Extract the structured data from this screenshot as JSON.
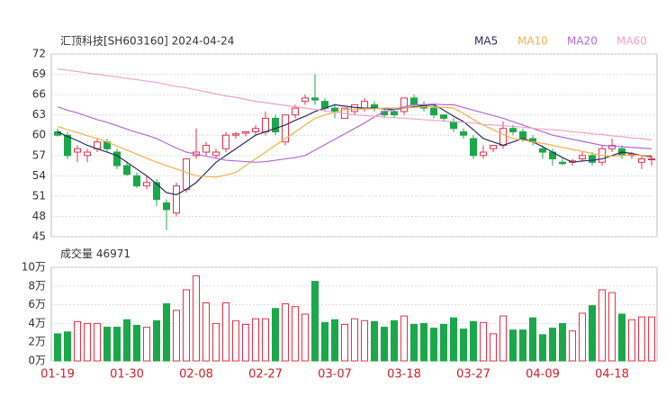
{
  "chart_data": [
    {
      "type": "candlestick",
      "title": "汇顶科技[SH603160] 2024-04-24",
      "up_color": "#e8304a",
      "down_color": "#1aa84a",
      "open": [
        60.5,
        60,
        57.5,
        57,
        58,
        59,
        57.5,
        55.5,
        54,
        52.5,
        53,
        50,
        48.5,
        52,
        57,
        57.5,
        57,
        58,
        60,
        60.3,
        60.5,
        60.5,
        62.5,
        59,
        63,
        65,
        65.5,
        65,
        64,
        62.5,
        63.5,
        64,
        64.5,
        63.5,
        63.5,
        63.5,
        65.5,
        64.5,
        64,
        63,
        62,
        60.5,
        59.5,
        57,
        58,
        58.5,
        61,
        60.5,
        59.5,
        58,
        57.5,
        56,
        56,
        56.5,
        57,
        56,
        58,
        58,
        57,
        56,
        56.5
      ],
      "high": [
        61,
        60.5,
        58.5,
        58,
        59.5,
        59.5,
        58,
        56,
        54.5,
        54,
        53.5,
        50.5,
        53,
        56.5,
        61,
        59,
        58,
        60.5,
        60.5,
        60.6,
        61.5,
        63.5,
        63,
        63,
        64.5,
        66,
        69,
        65.5,
        64.5,
        64,
        64.5,
        65.5,
        65,
        64,
        64,
        65.5,
        66,
        65,
        64.5,
        63,
        62.5,
        61,
        60,
        58.5,
        58.5,
        62,
        61.5,
        61,
        60,
        58.5,
        58,
        56.5,
        56.5,
        57.5,
        57.5,
        58.5,
        59.5,
        58.5,
        57.5,
        57,
        57
      ],
      "low": [
        59.8,
        56.5,
        56,
        56,
        57.5,
        57.5,
        55,
        54,
        52.2,
        52,
        49.5,
        46,
        48,
        51.5,
        56.5,
        57,
        56.5,
        57.5,
        59.5,
        59.8,
        60,
        60,
        60,
        58.5,
        62.5,
        64.5,
        64.5,
        63.5,
        62.5,
        62.5,
        63,
        63.5,
        63.5,
        62.5,
        62.5,
        63,
        64,
        63.5,
        62.5,
        62,
        60.5,
        59.5,
        56.5,
        56.5,
        57.5,
        58,
        60,
        59,
        58.5,
        56.5,
        55.5,
        55.5,
        55.5,
        56,
        55.5,
        55.5,
        57.5,
        56.5,
        56.5,
        55,
        55.5
      ],
      "close": [
        60,
        57,
        58,
        57.5,
        59,
        58,
        55.5,
        54.2,
        52.5,
        53,
        50.5,
        49,
        52.5,
        56.5,
        57.5,
        58.5,
        57.5,
        60,
        60.2,
        60.5,
        61,
        62.5,
        60.5,
        63,
        64,
        65.5,
        65.2,
        64,
        63.5,
        64,
        64.5,
        65,
        64,
        63,
        63,
        65.5,
        64.5,
        64,
        63,
        62.5,
        61,
        60,
        57,
        57.5,
        58.5,
        61,
        60.5,
        59.5,
        59,
        57.5,
        56.5,
        55.8,
        56.2,
        57,
        56,
        58,
        58.5,
        57,
        57.2,
        56.5,
        56.5
      ],
      "series": [
        {
          "name": "MA5",
          "color": "#2b2b5e",
          "values": [
            60.5,
            59.8,
            59.2,
            58.5,
            58.0,
            57.5,
            57.0,
            56.0,
            55.0,
            54.0,
            52.8,
            51.5,
            51.2,
            52.0,
            53.0,
            54.5,
            56.0,
            57.0,
            58.0,
            59.0,
            60.0,
            60.5,
            61.0,
            61.5,
            62.2,
            62.8,
            63.5,
            64.0,
            64.5,
            64.3,
            64.1,
            64.0,
            64.0,
            63.9,
            63.8,
            64.0,
            64.2,
            64.4,
            64.5,
            63.7,
            62.8,
            62.0,
            60.8,
            59.5,
            59.0,
            58.5,
            59.0,
            59.5,
            59.0,
            58.3,
            57.5,
            56.7,
            56.0,
            56.2,
            56.3,
            56.5,
            57.0,
            57.5,
            57.3,
            57.0,
            56.8
          ]
        },
        {
          "name": "MA10",
          "color": "#f5b14a",
          "values": [
            61.3,
            60.8,
            60.4,
            59.9,
            59.5,
            59.0,
            58.4,
            57.8,
            57.2,
            56.6,
            56.0,
            55.5,
            55.0,
            54.5,
            54.0,
            53.9,
            53.8,
            54.1,
            54.5,
            55.5,
            56.5,
            57.5,
            58.5,
            59.5,
            60.5,
            61.5,
            62.5,
            63.0,
            63.4,
            63.8,
            63.8,
            63.9,
            63.9,
            64.0,
            64.0,
            64.0,
            64.1,
            64.2,
            64.2,
            64.1,
            64.0,
            63.2,
            62.3,
            61.5,
            60.8,
            60.1,
            59.5,
            59.3,
            59.0,
            58.8,
            58.5,
            58.2,
            57.9,
            57.6,
            57.3,
            57.0,
            56.9,
            57.0,
            57.1,
            57.0,
            57.0
          ]
        },
        {
          "name": "MA20",
          "color": "#b46ad8",
          "values": [
            64.2,
            63.7,
            63.3,
            62.8,
            62.3,
            61.9,
            61.4,
            60.9,
            60.4,
            60.0,
            59.5,
            58.8,
            58.1,
            57.5,
            57.2,
            56.9,
            56.6,
            56.3,
            56.2,
            56.1,
            56.0,
            56.1,
            56.3,
            56.5,
            56.7,
            57.0,
            57.8,
            58.6,
            59.4,
            60.2,
            61.0,
            61.8,
            62.7,
            63.5,
            63.8,
            64.2,
            64.5,
            64.5,
            64.6,
            64.5,
            64.5,
            64.1,
            63.7,
            63.3,
            62.9,
            62.5,
            62.0,
            61.5,
            61.0,
            60.5,
            60.0,
            59.7,
            59.4,
            59.1,
            58.8,
            58.5,
            58.4,
            58.3,
            58.2,
            58.1,
            58.0
          ]
        },
        {
          "name": "MA60",
          "color": "#f2a2c8",
          "values": [
            69.8,
            69.6,
            69.4,
            69.2,
            69.0,
            68.8,
            68.6,
            68.4,
            68.2,
            68.0,
            67.8,
            67.5,
            67.2,
            67.0,
            66.7,
            66.4,
            66.1,
            65.8,
            65.6,
            65.3,
            65.0,
            64.8,
            64.6,
            64.4,
            64.2,
            64.0,
            63.8,
            63.6,
            63.4,
            63.2,
            63.0,
            62.9,
            62.8,
            62.7,
            62.6,
            62.5,
            62.4,
            62.3,
            62.2,
            62.1,
            62.0,
            61.9,
            61.8,
            61.6,
            61.5,
            61.4,
            61.3,
            61.2,
            61.0,
            60.9,
            60.8,
            60.7,
            60.5,
            60.4,
            60.2,
            60.1,
            59.9,
            59.8,
            59.6,
            59.5,
            59.3
          ]
        }
      ],
      "ylim": [
        45,
        72
      ],
      "yticks": [
        45,
        48,
        51,
        54,
        57,
        60,
        63,
        66,
        69,
        72
      ],
      "grid": true
    },
    {
      "type": "bar",
      "title": "成交量",
      "categories": [
        "01-19",
        null,
        null,
        null,
        null,
        null,
        null,
        "01-30",
        null,
        null,
        null,
        null,
        null,
        null,
        "02-08",
        null,
        null,
        null,
        null,
        null,
        null,
        "02-27",
        null,
        null,
        null,
        null,
        null,
        null,
        "03-07",
        null,
        null,
        null,
        null,
        null,
        null,
        "03-18",
        null,
        null,
        null,
        null,
        null,
        null,
        "03-27",
        null,
        null,
        null,
        null,
        null,
        null,
        "04-09",
        null,
        null,
        null,
        null,
        null,
        null,
        "04-18",
        null,
        null,
        null,
        null
      ],
      "values": [
        29000,
        31000,
        42000,
        40000,
        40000,
        36000,
        36000,
        44000,
        38000,
        36000,
        43000,
        61000,
        54000,
        76000,
        91000,
        62000,
        40000,
        62000,
        43000,
        39000,
        45000,
        45000,
        56000,
        61000,
        58000,
        50000,
        85000,
        41000,
        44000,
        39000,
        45000,
        43000,
        42000,
        36000,
        43000,
        48000,
        39000,
        40000,
        35000,
        39000,
        46000,
        34000,
        42000,
        41000,
        29000,
        48000,
        33000,
        33000,
        46000,
        28000,
        35000,
        40000,
        32000,
        51000,
        59000,
        76000,
        73000,
        50000,
        44000,
        47000,
        46971
      ],
      "ylim": [
        0,
        100000
      ],
      "yticks": [
        {
          "value": 0,
          "label": "0万"
        },
        {
          "value": 20000,
          "label": "2万"
        },
        {
          "value": 40000,
          "label": "4万"
        },
        {
          "value": 60000,
          "label": "6万"
        },
        {
          "value": 80000,
          "label": "8万"
        },
        {
          "value": 100000,
          "label": "10万"
        }
      ],
      "grid": true
    }
  ]
}
